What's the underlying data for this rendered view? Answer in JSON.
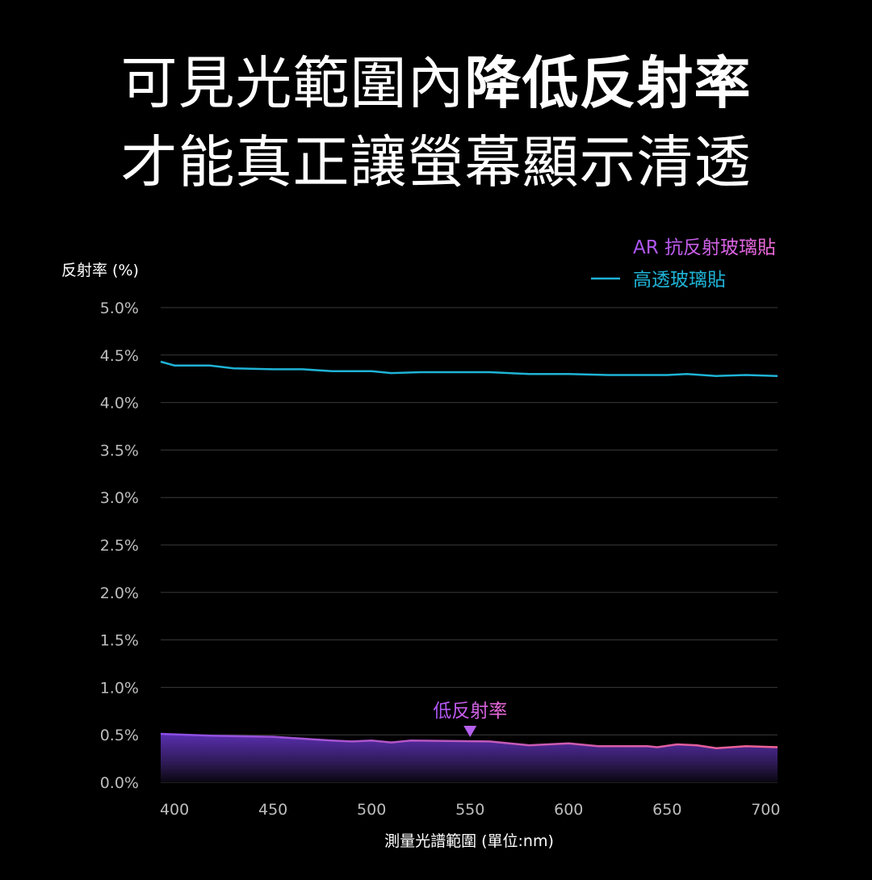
{
  "headline": {
    "line1_regular": "可見光範圍內",
    "line1_bold": "降低反射率",
    "line2": "才能真正讓螢幕顯示清透"
  },
  "chart_data": {
    "type": "line",
    "xlabel": "測量光譜範圍 (單位:nm)",
    "ylabel": "反射率 (%)",
    "xlim": [
      393,
      706
    ],
    "ylim": [
      0,
      5
    ],
    "xticks": [
      400,
      450,
      500,
      550,
      600,
      650,
      700
    ],
    "xtick_labels": [
      "400",
      "450",
      "500",
      "550",
      "600",
      "650",
      "700"
    ],
    "yticks": [
      0,
      0.5,
      1,
      1.5,
      2,
      2.5,
      3,
      3.5,
      4,
      4.5,
      5
    ],
    "ytick_labels": [
      "0.0%",
      "0.5%",
      "1.0%",
      "1.5%",
      "2.0%",
      "2.5%",
      "3.0%",
      "3.5%",
      "4.0%",
      "4.5%",
      "5.0%"
    ],
    "grid": true,
    "legend_position": "top-right",
    "series": [
      {
        "name": "AR 抗反射玻璃貼",
        "color": "#a855f7",
        "color_end": "#f06292",
        "filled": true,
        "x": [
          393,
          420,
          450,
          480,
          490,
          500,
          510,
          520,
          560,
          580,
          600,
          615,
          640,
          645,
          655,
          665,
          675,
          690,
          706
        ],
        "y": [
          0.51,
          0.49,
          0.48,
          0.44,
          0.43,
          0.44,
          0.42,
          0.44,
          0.43,
          0.39,
          0.41,
          0.38,
          0.38,
          0.37,
          0.4,
          0.39,
          0.36,
          0.38,
          0.37
        ]
      },
      {
        "name": "高透玻璃貼",
        "color": "#1fb3d6",
        "filled": false,
        "x": [
          393,
          400,
          418,
          430,
          450,
          465,
          480,
          500,
          510,
          525,
          560,
          580,
          600,
          620,
          650,
          660,
          675,
          690,
          706
        ],
        "y": [
          4.43,
          4.39,
          4.39,
          4.36,
          4.35,
          4.35,
          4.33,
          4.33,
          4.31,
          4.32,
          4.32,
          4.3,
          4.3,
          4.29,
          4.29,
          4.3,
          4.28,
          4.29,
          4.28
        ]
      }
    ],
    "annotations": [
      {
        "text": "低反射率",
        "x": 550,
        "y": 0.5,
        "marker": "down-triangle",
        "color": "#b660f0"
      }
    ]
  }
}
